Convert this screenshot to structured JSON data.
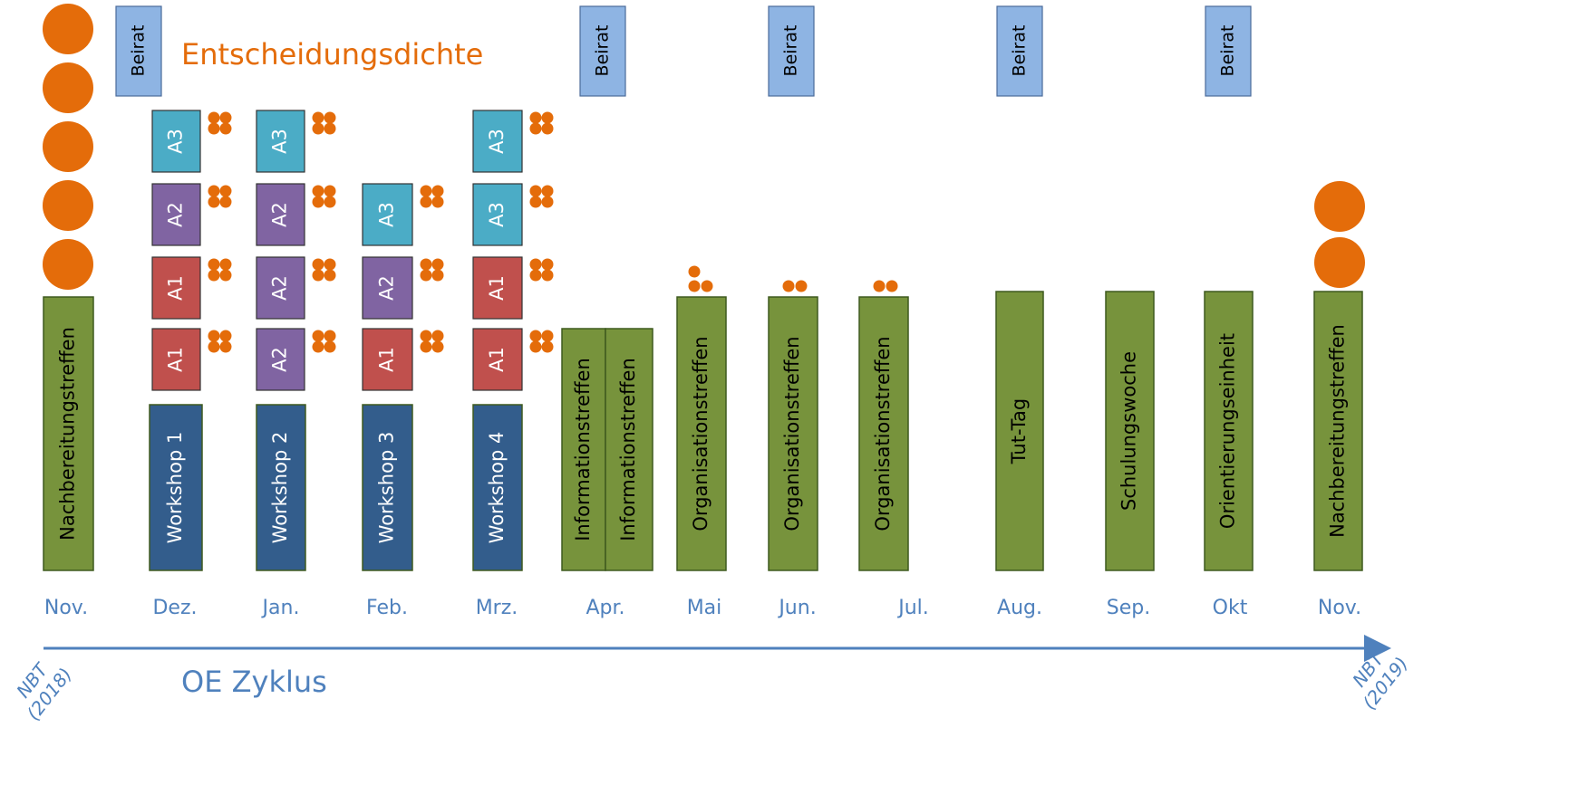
{
  "legend": "Entscheidungsdichte",
  "axis": {
    "label": "OE Zyklus",
    "start": [
      "NBT",
      "(2018)"
    ],
    "end": [
      "NBT",
      "(2019)"
    ]
  },
  "columns": [
    {
      "month": "Nov.",
      "events": [
        {
          "label": "Nachbereitungstreffen",
          "color": "#77933c",
          "text": "#000000"
        }
      ],
      "agenda": []
    },
    {
      "month": "Dez.",
      "beirat": "Beirat",
      "events": [
        {
          "label": "Workshop 1",
          "color": "#335d8c",
          "text": "#ffffff"
        }
      ],
      "agenda": [
        {
          "label": "A1",
          "color": "#c0504d"
        },
        {
          "label": "A1",
          "color": "#c0504d"
        },
        {
          "label": "A2",
          "color": "#8064a2"
        },
        {
          "label": "A3",
          "color": "#4bacc6"
        }
      ]
    },
    {
      "month": "Jan.",
      "events": [
        {
          "label": "Workshop 2",
          "color": "#335d8c",
          "text": "#ffffff"
        }
      ],
      "agenda": [
        {
          "label": "A2",
          "color": "#8064a2"
        },
        {
          "label": "A2",
          "color": "#8064a2"
        },
        {
          "label": "A2",
          "color": "#8064a2"
        },
        {
          "label": "A3",
          "color": "#4bacc6"
        }
      ]
    },
    {
      "month": "Feb.",
      "events": [
        {
          "label": "Workshop 3",
          "color": "#335d8c",
          "text": "#ffffff"
        }
      ],
      "agenda": [
        {
          "label": "A1",
          "color": "#c0504d"
        },
        {
          "label": "A2",
          "color": "#8064a2"
        },
        {
          "label": "A3",
          "color": "#4bacc6"
        }
      ]
    },
    {
      "month": "Mrz.",
      "events": [
        {
          "label": "Workshop 4",
          "color": "#335d8c",
          "text": "#ffffff"
        }
      ],
      "agenda": [
        {
          "label": "A1",
          "color": "#c0504d"
        },
        {
          "label": "A1",
          "color": "#c0504d"
        },
        {
          "label": "A3",
          "color": "#4bacc6"
        },
        {
          "label": "A3",
          "color": "#4bacc6"
        }
      ]
    },
    {
      "month": "Apr.",
      "beirat": "Beirat",
      "events": [
        {
          "label": "Informationstreffen",
          "color": "#77933c",
          "text": "#000000"
        },
        {
          "label": "Informationstreffen",
          "color": "#77933c",
          "text": "#000000"
        }
      ],
      "agenda": []
    },
    {
      "month": "Mai",
      "events": [
        {
          "label": "Organisationstreffen",
          "color": "#77933c",
          "text": "#000000"
        }
      ],
      "agenda": []
    },
    {
      "month": "Jun.",
      "beirat": "Beirat",
      "events": [
        {
          "label": "Organisationstreffen",
          "color": "#77933c",
          "text": "#000000"
        }
      ],
      "agenda": []
    },
    {
      "month": "Jul.",
      "events": [
        {
          "label": "Organisationstreffen",
          "color": "#77933c",
          "text": "#000000"
        }
      ],
      "agenda": []
    },
    {
      "month": "Aug.",
      "beirat": "Beirat",
      "events": [
        {
          "label": "Tut-Tag",
          "color": "#77933c",
          "text": "#000000"
        }
      ],
      "agenda": []
    },
    {
      "month": "Sep.",
      "events": [
        {
          "label": "Schulungswoche",
          "color": "#77933c",
          "text": "#000000"
        }
      ],
      "agenda": []
    },
    {
      "month": "Okt",
      "beirat": "Beirat",
      "events": [
        {
          "label": "Orientierungseinheit",
          "color": "#77933c",
          "text": "#000000"
        }
      ],
      "agenda": []
    },
    {
      "month": "Nov.",
      "events": [
        {
          "label": "Nachbereitungstreffen",
          "color": "#77933c",
          "text": "#000000"
        }
      ],
      "agenda": []
    }
  ]
}
